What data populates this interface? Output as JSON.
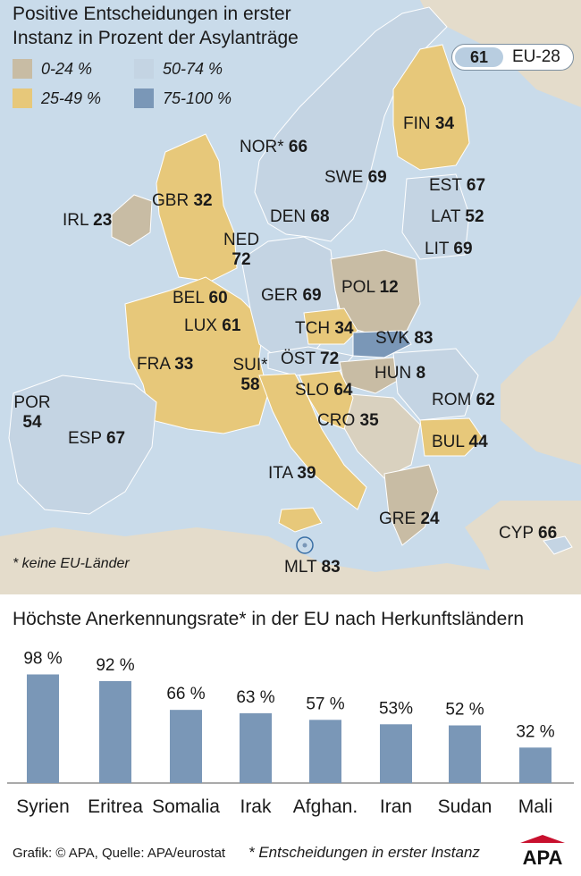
{
  "map": {
    "title_line1": "Positive Entscheidungen in erster",
    "title_line2": "Instanz in Prozent der Asylanträge",
    "legend": [
      {
        "label": "0-24 %",
        "color": "#c8bca4"
      },
      {
        "label": "25-49 %",
        "color": "#e7c87a"
      },
      {
        "label": "50-74 %",
        "color": "#c4d4e3"
      },
      {
        "label": "75-100 %",
        "color": "#7a97b7"
      }
    ],
    "eu_average": {
      "value": "61",
      "label": "EU-28"
    },
    "countries": [
      {
        "code": "NOR*",
        "value": "66"
      },
      {
        "code": "FIN",
        "value": "34"
      },
      {
        "code": "SWE",
        "value": "69"
      },
      {
        "code": "EST",
        "value": "67"
      },
      {
        "code": "IRL",
        "value": "23"
      },
      {
        "code": "GBR",
        "value": "32"
      },
      {
        "code": "DEN",
        "value": "68"
      },
      {
        "code": "LAT",
        "value": "52"
      },
      {
        "code": "NED",
        "value": "72"
      },
      {
        "code": "LIT",
        "value": "69"
      },
      {
        "code": "BEL",
        "value": "60"
      },
      {
        "code": "POL",
        "value": "12"
      },
      {
        "code": "GER",
        "value": "69"
      },
      {
        "code": "LUX",
        "value": "61"
      },
      {
        "code": "TCH",
        "value": "34"
      },
      {
        "code": "SVK",
        "value": "83"
      },
      {
        "code": "FRA",
        "value": "33"
      },
      {
        "code": "SUI*",
        "value": "58"
      },
      {
        "code": "ÖST",
        "value": "72"
      },
      {
        "code": "HUN",
        "value": "8"
      },
      {
        "code": "POR",
        "value": "54"
      },
      {
        "code": "SLO",
        "value": "64"
      },
      {
        "code": "ROM",
        "value": "62"
      },
      {
        "code": "ESP",
        "value": "67"
      },
      {
        "code": "CRO",
        "value": "35"
      },
      {
        "code": "BUL",
        "value": "44"
      },
      {
        "code": "ITA",
        "value": "39"
      },
      {
        "code": "GRE",
        "value": "24"
      },
      {
        "code": "CYP",
        "value": "66"
      },
      {
        "code": "MLT",
        "value": "83"
      }
    ],
    "footnote": "* keine EU-Länder"
  },
  "chart_data": {
    "type": "bar",
    "title": "Höchste Anerkennungsrate* in der EU nach Herkunftsländern",
    "categories": [
      "Syrien",
      "Eritrea",
      "Somalia",
      "Irak",
      "Afghan.",
      "Iran",
      "Sudan",
      "Mali"
    ],
    "values": [
      98,
      92,
      66,
      63,
      57,
      53,
      52,
      32
    ],
    "value_labels": [
      "98 %",
      "92 %",
      "66 %",
      "63 %",
      "57 %",
      "53%",
      "52 %",
      "32 %"
    ],
    "unit": "%",
    "ylim": [
      0,
      100
    ],
    "xlabel": "",
    "ylabel": "",
    "grid": false,
    "bar_color": "#7a97b7"
  },
  "footer": {
    "source": "Grafik: © APA, Quelle: APA/eurostat",
    "note": "* Entscheidungen in erster Instanz",
    "logo": "APA"
  }
}
